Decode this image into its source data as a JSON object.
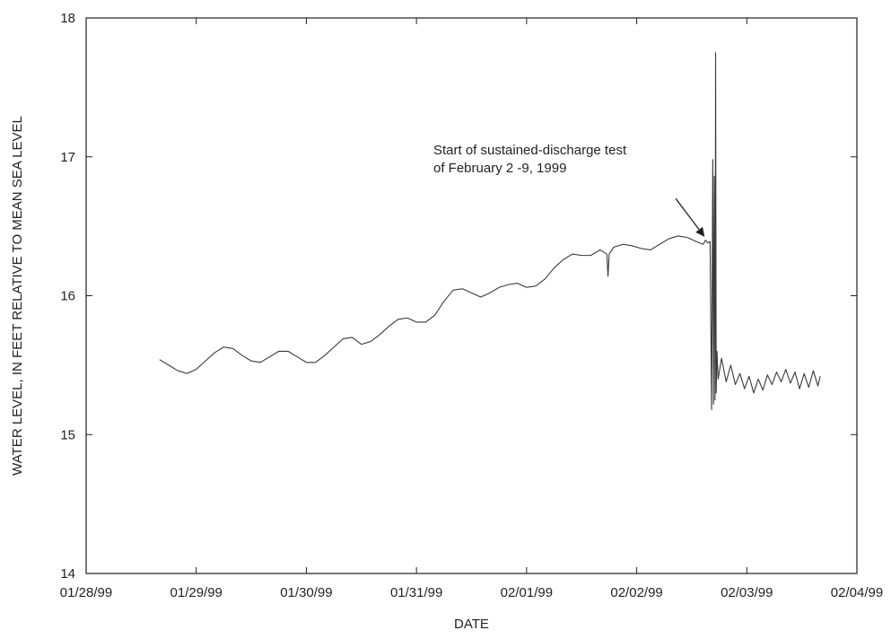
{
  "chart_data": {
    "type": "line",
    "xlabel": "DATE",
    "ylabel": "WATER LEVEL, IN FEET RELATIVE TO MEAN SEA LEVEL",
    "xlim": [
      "1999-01-28",
      "1999-02-04"
    ],
    "ylim": [
      14,
      18
    ],
    "x_ticks": [
      {
        "date": "1999-01-28",
        "label": "01/28/99"
      },
      {
        "date": "1999-01-29",
        "label": "01/29/99"
      },
      {
        "date": "1999-01-30",
        "label": "01/30/99"
      },
      {
        "date": "1999-01-31",
        "label": "01/31/99"
      },
      {
        "date": "1999-02-01",
        "label": "02/01/99"
      },
      {
        "date": "1999-02-02",
        "label": "02/02/99"
      },
      {
        "date": "1999-02-03",
        "label": "02/03/99"
      },
      {
        "date": "1999-02-04",
        "label": "02/04/99"
      }
    ],
    "y_ticks": [
      {
        "value": 14,
        "label": "14"
      },
      {
        "value": 15,
        "label": "15"
      },
      {
        "value": 16,
        "label": "16"
      },
      {
        "value": 17,
        "label": "17"
      },
      {
        "value": 18,
        "label": "18"
      }
    ],
    "grid": false,
    "series": [
      {
        "color": "#3a3a3a",
        "points": [
          [
            "1999-01-28 16:00",
            15.54
          ],
          [
            "1999-01-28 18:00",
            15.5
          ],
          [
            "1999-01-28 20:00",
            15.46
          ],
          [
            "1999-01-28 22:00",
            15.44
          ],
          [
            "1999-01-29 00:00",
            15.47
          ],
          [
            "1999-01-29 02:00",
            15.53
          ],
          [
            "1999-01-29 04:00",
            15.59
          ],
          [
            "1999-01-29 06:00",
            15.63
          ],
          [
            "1999-01-29 08:00",
            15.62
          ],
          [
            "1999-01-29 10:00",
            15.57
          ],
          [
            "1999-01-29 12:00",
            15.53
          ],
          [
            "1999-01-29 14:00",
            15.52
          ],
          [
            "1999-01-29 16:00",
            15.56
          ],
          [
            "1999-01-29 18:00",
            15.6
          ],
          [
            "1999-01-29 20:00",
            15.6
          ],
          [
            "1999-01-29 22:00",
            15.56
          ],
          [
            "1999-01-30 00:00",
            15.52
          ],
          [
            "1999-01-30 02:00",
            15.52
          ],
          [
            "1999-01-30 04:00",
            15.57
          ],
          [
            "1999-01-30 06:00",
            15.63
          ],
          [
            "1999-01-30 08:00",
            15.69
          ],
          [
            "1999-01-30 10:00",
            15.7
          ],
          [
            "1999-01-30 12:00",
            15.65
          ],
          [
            "1999-01-30 14:00",
            15.67
          ],
          [
            "1999-01-30 16:00",
            15.72
          ],
          [
            "1999-01-30 18:00",
            15.78
          ],
          [
            "1999-01-30 20:00",
            15.83
          ],
          [
            "1999-01-30 22:00",
            15.84
          ],
          [
            "1999-01-31 00:00",
            15.81
          ],
          [
            "1999-01-31 02:00",
            15.81
          ],
          [
            "1999-01-31 04:00",
            15.86
          ],
          [
            "1999-01-31 06:00",
            15.96
          ],
          [
            "1999-01-31 08:00",
            16.04
          ],
          [
            "1999-01-31 10:00",
            16.05
          ],
          [
            "1999-01-31 12:00",
            16.02
          ],
          [
            "1999-01-31 14:00",
            15.99
          ],
          [
            "1999-01-31 16:00",
            16.02
          ],
          [
            "1999-01-31 18:00",
            16.06
          ],
          [
            "1999-01-31 20:00",
            16.08
          ],
          [
            "1999-01-31 22:00",
            16.09
          ],
          [
            "1999-02-01 00:00",
            16.06
          ],
          [
            "1999-02-01 02:00",
            16.07
          ],
          [
            "1999-02-01 04:00",
            16.12
          ],
          [
            "1999-02-01 06:00",
            16.2
          ],
          [
            "1999-02-01 08:00",
            16.26
          ],
          [
            "1999-02-01 10:00",
            16.3
          ],
          [
            "1999-02-01 12:00",
            16.29
          ],
          [
            "1999-02-01 14:00",
            16.29
          ],
          [
            "1999-02-01 16:00",
            16.33
          ],
          [
            "1999-02-01 17:30",
            16.3
          ],
          [
            "1999-02-01 17:45",
            16.14
          ],
          [
            "1999-02-01 18:00",
            16.3
          ],
          [
            "1999-02-01 19:00",
            16.35
          ],
          [
            "1999-02-01 21:00",
            16.37
          ],
          [
            "1999-02-01 23:00",
            16.36
          ],
          [
            "1999-02-02 01:00",
            16.34
          ],
          [
            "1999-02-02 03:00",
            16.33
          ],
          [
            "1999-02-02 05:00",
            16.37
          ],
          [
            "1999-02-02 07:00",
            16.41
          ],
          [
            "1999-02-02 09:00",
            16.43
          ],
          [
            "1999-02-02 11:00",
            16.42
          ],
          [
            "1999-02-02 13:00",
            16.39
          ],
          [
            "1999-02-02 14:30",
            16.37
          ],
          [
            "1999-02-02 15:00",
            16.4
          ],
          [
            "1999-02-02 15:30",
            16.38
          ],
          [
            "1999-02-02 16:00",
            16.39
          ],
          [
            "1999-02-02 16:20",
            15.18
          ],
          [
            "1999-02-02 16:35",
            16.98
          ],
          [
            "1999-02-02 16:45",
            15.22
          ],
          [
            "1999-02-02 16:55",
            16.86
          ],
          [
            "1999-02-02 17:05",
            15.25
          ],
          [
            "1999-02-02 17:12",
            17.75
          ],
          [
            "1999-02-02 17:20",
            15.3
          ],
          [
            "1999-02-02 17:30",
            15.6
          ],
          [
            "1999-02-02 17:45",
            15.4
          ],
          [
            "1999-02-02 18:30",
            15.55
          ],
          [
            "1999-02-02 19:30",
            15.38
          ],
          [
            "1999-02-02 20:30",
            15.5
          ],
          [
            "1999-02-02 21:30",
            15.36
          ],
          [
            "1999-02-02 22:30",
            15.44
          ],
          [
            "1999-02-02 23:30",
            15.33
          ],
          [
            "1999-02-03 00:30",
            15.42
          ],
          [
            "1999-02-03 01:30",
            15.3
          ],
          [
            "1999-02-03 02:30",
            15.4
          ],
          [
            "1999-02-03 03:30",
            15.32
          ],
          [
            "1999-02-03 04:30",
            15.43
          ],
          [
            "1999-02-03 05:30",
            15.36
          ],
          [
            "1999-02-03 06:30",
            15.45
          ],
          [
            "1999-02-03 07:30",
            15.38
          ],
          [
            "1999-02-03 08:30",
            15.47
          ],
          [
            "1999-02-03 09:30",
            15.37
          ],
          [
            "1999-02-03 10:30",
            15.45
          ],
          [
            "1999-02-03 11:30",
            15.33
          ],
          [
            "1999-02-03 12:30",
            15.44
          ],
          [
            "1999-02-03 13:30",
            15.34
          ],
          [
            "1999-02-03 14:30",
            15.46
          ],
          [
            "1999-02-03 15:30",
            15.35
          ],
          [
            "1999-02-03 16:00",
            15.42
          ]
        ]
      }
    ],
    "annotations": [
      {
        "text_lines": [
          "Start of sustained-discharge test",
          "of February 2 -9, 1999"
        ],
        "arrow_from": [
          "1999-02-02 08:30",
          16.7
        ],
        "arrow_to": [
          "1999-02-02 14:40",
          16.43
        ]
      }
    ]
  }
}
